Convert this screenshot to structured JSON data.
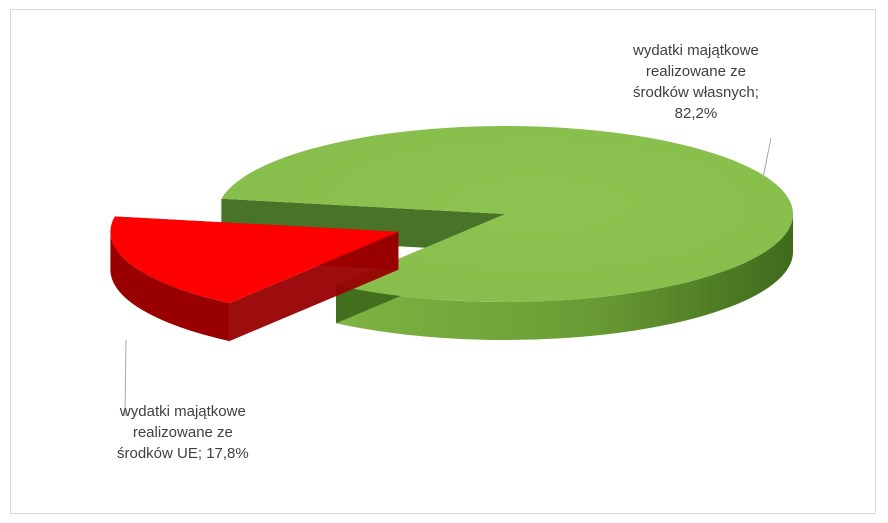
{
  "chart_data": {
    "type": "pie",
    "style": "3d-exploded",
    "legend": "none",
    "slices": [
      {
        "label_lines": [
          "wydatki majątkowe",
          "realizowane ze",
          "środków własnych;",
          "82,2%"
        ],
        "value": 82.2,
        "color": "#8dc350",
        "side_color": "#3f6b1c"
      },
      {
        "label_lines": [
          "wydatki majątkowe",
          "realizowane ze",
          "środków UE; 17,8%"
        ],
        "value": 17.8,
        "color": "#ff0000",
        "side_color": "#990000"
      }
    ]
  }
}
